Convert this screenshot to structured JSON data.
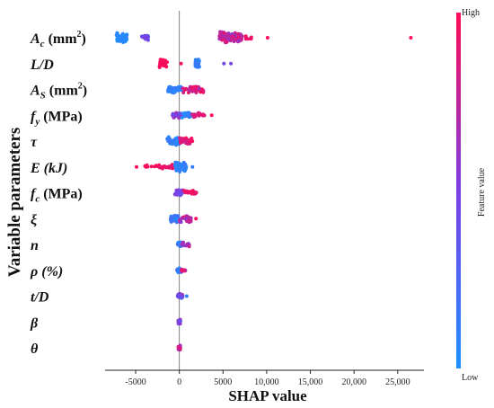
{
  "chart_data": {
    "type": "scatter",
    "subtype": "shap-beeswarm",
    "xlabel": "SHAP value",
    "ylabel": "Variable parameters",
    "xlim": [
      -8500,
      28000
    ],
    "x_ticks": [
      -5000,
      0,
      5000,
      10000,
      15000,
      20000,
      25000
    ],
    "x_tick_labels": [
      "-5000",
      "0",
      "5000",
      "10,000",
      "15,000",
      "20,000",
      "25,000"
    ],
    "zero_line": 0,
    "grid": false,
    "colorbar": {
      "label": "Feature value",
      "high_label": "High",
      "low_label": "Low",
      "low_color": "#1e90ff",
      "mid_color": "#7b3fe4",
      "high_color": "#ff0b55",
      "placement": "right"
    },
    "features": [
      {
        "name": "Ac",
        "label": {
          "base": "A",
          "sub": "c",
          "tail": " (mm",
          "sup": "2",
          "end": ")"
        },
        "clusters": [
          {
            "min": -7200,
            "max": -6000,
            "n": 70,
            "spread": 6,
            "v": [
              0.0,
              0.1
            ]
          },
          {
            "min": -4300,
            "max": -3500,
            "n": 14,
            "spread": 3,
            "v": [
              0.35,
              0.5
            ]
          },
          {
            "min": 4600,
            "max": 7200,
            "n": 90,
            "spread": 7,
            "v": [
              0.6,
              0.95
            ]
          },
          {
            "min": 7200,
            "max": 8300,
            "n": 8,
            "spread": 2,
            "v": [
              0.9,
              1.0
            ]
          }
        ],
        "points": [
          {
            "x": 10100,
            "v": 1.0
          },
          {
            "x": 26500,
            "v": 1.0
          }
        ]
      },
      {
        "name": "L/D",
        "label": {
          "base": "L/D"
        },
        "clusters": [
          {
            "min": -2300,
            "max": -1300,
            "n": 30,
            "spread": 5,
            "v": [
              0.95,
              1.0
            ]
          },
          {
            "min": 1800,
            "max": 2300,
            "n": 35,
            "spread": 6,
            "v": [
              0.05,
              0.15
            ]
          }
        ],
        "points": [
          {
            "x": 200,
            "v": 0.95
          },
          {
            "x": 5100,
            "v": 0.45
          },
          {
            "x": 5900,
            "v": 0.45
          }
        ]
      },
      {
        "name": "As",
        "label": {
          "base": "A",
          "sub": "S",
          "tail": " (mm",
          "sup": "2",
          "end": ")"
        },
        "clusters": [
          {
            "min": -1300,
            "max": 300,
            "n": 50,
            "spread": 4,
            "v": [
              0.0,
              0.2
            ]
          },
          {
            "min": 300,
            "max": 2800,
            "n": 40,
            "spread": 4,
            "v": [
              0.6,
              1.0
            ]
          }
        ],
        "points": []
      },
      {
        "name": "fy",
        "label": {
          "base": "f",
          "sub": "y",
          "tail": " (MPa)"
        },
        "clusters": [
          {
            "min": -800,
            "max": 300,
            "n": 40,
            "spread": 4,
            "v": [
              0.4,
              0.65
            ]
          },
          {
            "min": 300,
            "max": 1300,
            "n": 25,
            "spread": 3,
            "v": [
              0.0,
              0.15
            ]
          },
          {
            "min": 1300,
            "max": 3200,
            "n": 16,
            "spread": 3,
            "v": [
              0.8,
              1.0
            ]
          }
        ],
        "points": [
          {
            "x": 3700,
            "v": 1.0
          }
        ]
      },
      {
        "name": "tau",
        "label": {
          "base": "τ"
        },
        "clusters": [
          {
            "min": -1400,
            "max": 0,
            "n": 45,
            "spread": 5,
            "v": [
              0.0,
              0.2
            ]
          },
          {
            "min": 0,
            "max": 1500,
            "n": 35,
            "spread": 4,
            "v": [
              0.75,
              1.0
            ]
          }
        ],
        "points": []
      },
      {
        "name": "E",
        "label": {
          "base": "E (kJ)"
        },
        "clusters": [
          {
            "min": -4000,
            "max": -2300,
            "n": 10,
            "spread": 3,
            "v": [
              0.95,
              1.0
            ]
          },
          {
            "min": -2300,
            "max": -500,
            "n": 20,
            "spread": 3,
            "v": [
              0.85,
              1.0
            ]
          },
          {
            "min": -500,
            "max": 800,
            "n": 55,
            "spread": 6,
            "v": [
              0.0,
              0.2
            ]
          }
        ],
        "points": [
          {
            "x": -4900,
            "v": 1.0
          },
          {
            "x": 1500,
            "v": 0.1
          }
        ]
      },
      {
        "name": "fc",
        "label": {
          "base": "f",
          "sub": "c",
          "tail": " (MPa)"
        },
        "clusters": [
          {
            "min": -500,
            "max": 400,
            "n": 35,
            "spread": 4,
            "v": [
              0.35,
              0.55
            ]
          },
          {
            "min": 400,
            "max": 2000,
            "n": 20,
            "spread": 3,
            "v": [
              0.85,
              1.0
            ]
          }
        ],
        "points": []
      },
      {
        "name": "xi",
        "label": {
          "base": "ξ"
        },
        "clusters": [
          {
            "min": -1000,
            "max": 0,
            "n": 35,
            "spread": 5,
            "v": [
              0.0,
              0.3
            ]
          },
          {
            "min": 0,
            "max": 1400,
            "n": 30,
            "spread": 5,
            "v": [
              0.5,
              1.0
            ]
          }
        ],
        "points": [
          {
            "x": 1900,
            "v": 1.0
          }
        ]
      },
      {
        "name": "n",
        "label": {
          "base": "n"
        },
        "clusters": [
          {
            "min": -200,
            "max": 300,
            "n": 25,
            "spread": 3,
            "v": [
              0.0,
              0.25
            ]
          },
          {
            "min": 300,
            "max": 1200,
            "n": 15,
            "spread": 3,
            "v": [
              0.55,
              0.8
            ]
          }
        ],
        "points": []
      },
      {
        "name": "rho",
        "label": {
          "base": "ρ (%)"
        },
        "clusters": [
          {
            "min": -300,
            "max": 200,
            "n": 25,
            "spread": 3,
            "v": [
              0.0,
              0.35
            ]
          },
          {
            "min": 200,
            "max": 700,
            "n": 10,
            "spread": 2,
            "v": [
              0.7,
              1.0
            ]
          }
        ],
        "points": []
      },
      {
        "name": "t/D",
        "label": {
          "base": "t/D"
        },
        "clusters": [
          {
            "min": -200,
            "max": 400,
            "n": 25,
            "spread": 3,
            "v": [
              0.2,
              0.65
            ]
          }
        ],
        "points": [
          {
            "x": 850,
            "v": 0.1
          }
        ]
      },
      {
        "name": "beta",
        "label": {
          "base": "β"
        },
        "clusters": [
          {
            "min": -120,
            "max": 120,
            "n": 25,
            "spread": 3,
            "v": [
              0.3,
              0.8
            ]
          }
        ],
        "points": []
      },
      {
        "name": "theta",
        "label": {
          "base": "θ"
        },
        "clusters": [
          {
            "min": -120,
            "max": 120,
            "n": 25,
            "spread": 3,
            "v": [
              0.6,
              1.0
            ]
          }
        ],
        "points": []
      }
    ]
  }
}
